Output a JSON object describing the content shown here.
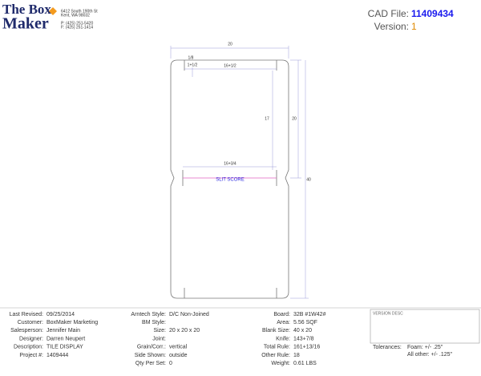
{
  "header": {
    "logo_top": "The Box",
    "logo_bottom": "Maker",
    "address": [
      "6412 South 190th St",
      "Kent, WA 98032",
      "P: (425) 251-5420",
      "F: (425) 251-1414"
    ],
    "cad_label": "CAD File:",
    "cad_value": "11409434",
    "version_label": "Version:",
    "version_value": "1"
  },
  "drawing": {
    "overall_width": "20",
    "slot_width": "1/8",
    "slot_depth": "1+1/2",
    "inner_width": "16+1/2",
    "inner_height": "17",
    "panel_height": "20",
    "total_height": "40",
    "score_width": "16+3/4",
    "score_label": "SLIT SCORE"
  },
  "footer": {
    "columns": [
      [
        {
          "label": "Last Revised:",
          "value": "09/25/2014"
        },
        {
          "label": "Customer:",
          "value": "BoxMaker Marketing"
        },
        {
          "label": "Salesperson:",
          "value": "Jennifer Main"
        },
        {
          "label": "Designer:",
          "value": "Darren Neupert"
        },
        {
          "label": "Description:",
          "value": "TILE DISPLAY"
        },
        {
          "label": "Project #:",
          "value": "1409444"
        }
      ],
      [
        {
          "label": "Arntech Style:",
          "value": "D/C Non-Joined"
        },
        {
          "label": "BM Style:"
        },
        {
          "label": "Size:",
          "value": "20  x 20  x 20"
        },
        {
          "label": "Joint:"
        },
        {
          "label": "Grain/Corr.:",
          "value": "vertical"
        },
        {
          "label": "Side Shown:",
          "value": "outside"
        },
        {
          "label": "Qty Per Set:",
          "value": "0"
        }
      ],
      [
        {
          "label": "Board:",
          "value": "32B #1W42#"
        },
        {
          "label": "Area:",
          "value": "5.56 SQF"
        },
        {
          "label": "Blank Size:",
          "value": "40 x 20"
        },
        {
          "label": "Knife:",
          "value": "143+7/8"
        },
        {
          "label": "Total Rule:",
          "value": "161+13/16"
        },
        {
          "label": "Other Rule:",
          "value": "18"
        },
        {
          "label": "Weight:",
          "value": "0.61 LBS"
        }
      ]
    ],
    "version_desc": "VERSION DESC",
    "tolerances_label": "Tolerances:",
    "tolerances": [
      "Foam: +/- .25\"",
      "All other: +/- .125\""
    ]
  }
}
